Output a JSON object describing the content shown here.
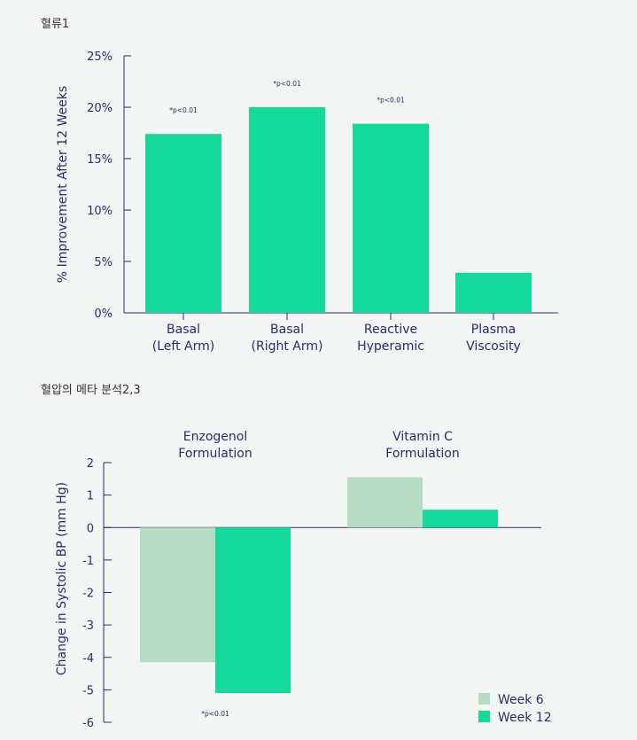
{
  "chart_data": [
    {
      "type": "bar",
      "title": "혈류1",
      "ylabel": "% Improvement After 12 Weeks",
      "ylim": [
        0,
        25
      ],
      "yticks": [
        "0%",
        "5%",
        "10%",
        "15%",
        "20%",
        "25%"
      ],
      "ytick_values": [
        0,
        5,
        10,
        15,
        20,
        25
      ],
      "categories": [
        [
          "Basal",
          "(Left Arm)"
        ],
        [
          "Basal",
          "(Right Arm)"
        ],
        [
          "Reactive",
          "Hyperamic"
        ],
        [
          "Plasma",
          "Viscosity"
        ]
      ],
      "values": [
        17.4,
        20.0,
        18.4,
        3.9
      ],
      "annotations": [
        "*p<0.01",
        "*p<0.01",
        "*p<0.01",
        ""
      ],
      "color": "#14d99a",
      "grid": false
    },
    {
      "type": "bar",
      "title": "혈압의 메타 분석2,3",
      "ylabel": "Change in Systolic BP (mm Hg)",
      "ylim": [
        -6,
        2
      ],
      "yticks": [
        "2",
        "1",
        "0",
        "-1",
        "-2",
        "-3",
        "-4",
        "-5",
        "-6"
      ],
      "ytick_values": [
        2,
        1,
        0,
        -1,
        -2,
        -3,
        -4,
        -5,
        -6
      ],
      "groups": [
        [
          "Enzogenol",
          "Formulation"
        ],
        [
          "Vitamin C",
          "Formulation"
        ]
      ],
      "series": [
        {
          "name": "Week 6",
          "values": [
            -4.15,
            1.55
          ],
          "color": "#b7dcc4"
        },
        {
          "name": "Week 12",
          "values": [
            -5.1,
            0.55
          ],
          "color": "#14d99a"
        }
      ],
      "annotation": "*p<0.01",
      "legend": "bottom-right",
      "grid": false
    }
  ]
}
